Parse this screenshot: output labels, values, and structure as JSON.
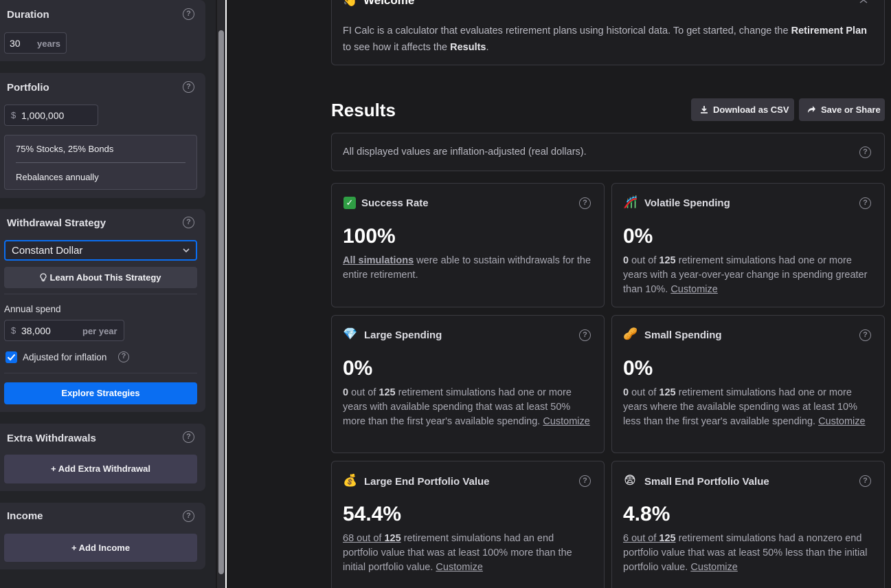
{
  "sidebar": {
    "duration": {
      "title": "Duration",
      "value": "30",
      "unit": "years"
    },
    "portfolio": {
      "title": "Portfolio",
      "currency": "$",
      "value": "1,000,000",
      "allocation": "75% Stocks, 25% Bonds",
      "rebalance": "Rebalances annually"
    },
    "withdrawal": {
      "title": "Withdrawal Strategy",
      "strategy": "Constant Dollar",
      "learn_label": "Learn About This Strategy",
      "annual_spend_label": "Annual spend",
      "currency": "$",
      "annual_spend": "38,000",
      "per_year": "per year",
      "inflation_label": "Adjusted for inflation",
      "inflation_checked": true,
      "explore_label": "Explore Strategies"
    },
    "extra": {
      "title": "Extra Withdrawals",
      "add_label": "+ Add Extra Withdrawal"
    },
    "income": {
      "title": "Income",
      "add_label": "+ Add Income"
    }
  },
  "welcome": {
    "title": "Welcome",
    "text_before": "FI Calc is a calculator that evaluates retirement plans using historical data. To get started, change the ",
    "plan_label": "Retirement Plan",
    "text_mid": " to see how it affects the ",
    "results_label": "Results",
    "text_end": "."
  },
  "results": {
    "title": "Results",
    "download_label": "Download as CSV",
    "share_label": "Save or Share",
    "notice": "All displayed values are inflation-adjusted (real dollars)."
  },
  "cards": {
    "success": {
      "title": "Success Rate",
      "value": "100%",
      "link": "All simulations",
      "text": " were able to sustain withdrawals for the entire retirement."
    },
    "volatile": {
      "title": "Volatile Spending",
      "value": "0%",
      "count": "0",
      "out_of": " out of ",
      "total": "125",
      "text": " retirement simulations had one or more years with a year-over-year change in spending greater than 10%. ",
      "customize": "Customize"
    },
    "large": {
      "title": "Large Spending",
      "value": "0%",
      "count": "0",
      "out_of": " out of ",
      "total": "125",
      "text": " retirement simulations had one or more years with available spending that was at least 50% more than the first year's available spending. ",
      "customize": "Customize"
    },
    "small": {
      "title": "Small Spending",
      "value": "0%",
      "count": "0",
      "out_of": " out of ",
      "total": "125",
      "text": " retirement simulations had one or more years where the available spending was at least 10% less than the first year's available spending. ",
      "customize": "Customize"
    },
    "large_end": {
      "title": "Large End Portfolio Value",
      "value": "54.4%",
      "count_link": "68 out of ",
      "total": "125",
      "text": " retirement simulations had an end portfolio value that was at least 100% more than the initial portfolio value. ",
      "customize": "Customize"
    },
    "small_end": {
      "title": "Small End Portfolio Value",
      "value": "4.8%",
      "count_link": "6 out of ",
      "total": "125",
      "text": " retirement simulations had a nonzero end portfolio value that was at least 50% less than the initial portfolio value. ",
      "customize": "Customize"
    }
  },
  "icons": {
    "success": "check-mark-button",
    "volatile": "roller-coaster",
    "large": "gem-stone",
    "small": "peanuts",
    "large_end": "money-bag",
    "small_end": "fearful-face"
  },
  "colors": {
    "accent": "#0a6ef2",
    "panel": "#2d2d35",
    "background": "#1b1b1d"
  }
}
